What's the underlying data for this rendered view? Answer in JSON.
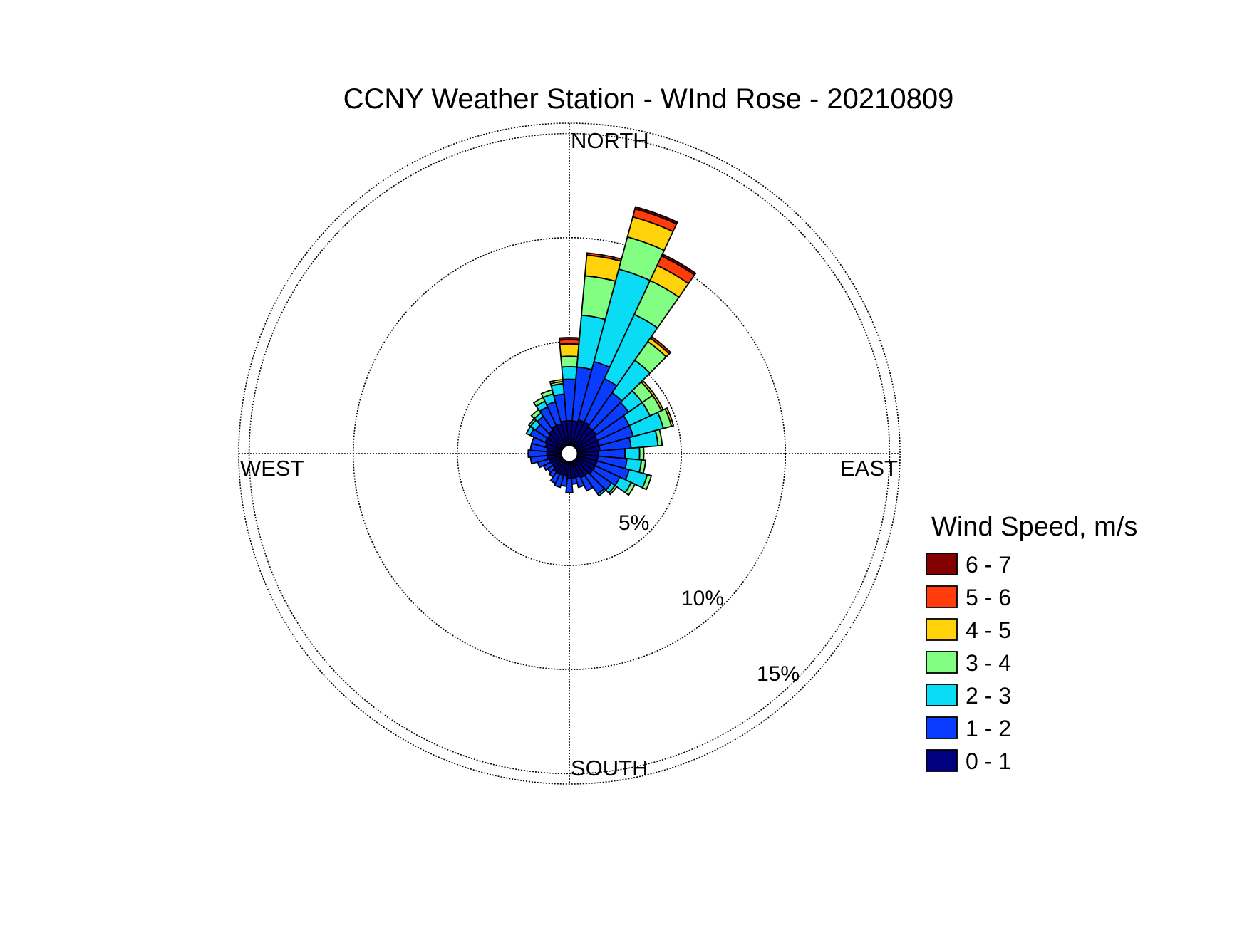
{
  "chart_data": {
    "type": "wind-rose",
    "title": "CCNY Weather Station - WInd Rose - 20210809",
    "directions_deg": [
      0,
      10,
      20,
      30,
      40,
      50,
      60,
      70,
      80,
      90,
      100,
      110,
      120,
      130,
      140,
      150,
      160,
      170,
      180,
      190,
      200,
      210,
      220,
      230,
      240,
      250,
      260,
      270,
      280,
      290,
      300,
      310,
      320,
      330,
      340,
      350
    ],
    "direction_labels": {
      "north": "NORTH",
      "east": "EAST",
      "south": "SOUTH",
      "west": "WEST"
    },
    "radial_unit": "%",
    "radial_ticks": [
      {
        "value": 5,
        "label": "5%"
      },
      {
        "value": 10,
        "label": "10%"
      },
      {
        "value": 15,
        "label": "15%"
      }
    ],
    "radial_max": 15.5,
    "legend_title": "Wind Speed, m/s",
    "legend_position": "right",
    "speed_bins": [
      {
        "label": "0 - 1",
        "color": "#000080"
      },
      {
        "label": "1 - 2",
        "color": "#0a3cff"
      },
      {
        "label": "2 - 3",
        "color": "#0adcf5"
      },
      {
        "label": "3 - 4",
        "color": "#82ff82"
      },
      {
        "label": "4 - 5",
        "color": "#ffd20a"
      },
      {
        "label": "5 - 6",
        "color": "#ff3c0a"
      },
      {
        "label": "6 - 7",
        "color": "#820000"
      }
    ],
    "series_cumulative": [
      [
        1.2,
        3.2,
        3.8,
        4.3,
        4.9,
        5.1,
        5.2
      ],
      [
        1.2,
        3.8,
        6.3,
        8.2,
        9.2,
        9.3,
        9.3
      ],
      [
        1.3,
        4.2,
        8.8,
        10.4,
        11.4,
        11.8,
        11.9
      ],
      [
        1.3,
        3.6,
        7.0,
        8.8,
        9.6,
        10.1,
        10.2
      ],
      [
        1.2,
        3.2,
        5.1,
        6.2,
        6.4,
        6.5,
        6.5
      ],
      [
        1.2,
        3.1,
        3.9,
        4.5,
        4.6,
        4.6,
        4.6
      ],
      [
        1.1,
        2.8,
        3.9,
        4.5,
        4.6,
        4.6,
        4.6
      ],
      [
        1.1,
        2.8,
        4.3,
        4.7,
        4.8,
        4.8,
        4.8
      ],
      [
        1.1,
        2.6,
        3.9,
        4.1,
        4.1,
        4.1,
        4.1
      ],
      [
        1.0,
        2.3,
        3.0,
        3.2,
        3.2,
        3.2,
        3.2
      ],
      [
        1.0,
        2.4,
        3.1,
        3.3,
        3.3,
        3.3,
        3.3
      ],
      [
        1.0,
        2.6,
        3.5,
        3.7,
        3.7,
        3.7,
        3.7
      ],
      [
        1.0,
        2.3,
        2.9,
        3.1,
        3.1,
        3.1,
        3.1
      ],
      [
        1.0,
        2.1,
        2.3,
        2.4,
        2.4,
        2.4,
        2.4
      ],
      [
        0.9,
        2.0,
        2.1,
        2.1,
        2.1,
        2.1,
        2.1
      ],
      [
        0.9,
        1.6,
        1.6,
        1.6,
        1.6,
        1.6,
        1.6
      ],
      [
        0.8,
        1.3,
        1.3,
        1.3,
        1.3,
        1.3,
        1.3
      ],
      [
        0.8,
        1.1,
        1.1,
        1.1,
        1.1,
        1.1,
        1.1
      ],
      [
        0.8,
        1.5,
        1.5,
        1.5,
        1.5,
        1.5,
        1.5
      ],
      [
        0.7,
        1.2,
        1.2,
        1.2,
        1.2,
        1.2,
        1.2
      ],
      [
        0.7,
        1.3,
        1.3,
        1.3,
        1.3,
        1.3,
        1.3
      ],
      [
        0.7,
        1.2,
        1.2,
        1.2,
        1.2,
        1.2,
        1.2
      ],
      [
        0.7,
        1.0,
        1.0,
        1.0,
        1.0,
        1.0,
        1.0
      ],
      [
        0.6,
        0.9,
        0.9,
        0.9,
        0.9,
        0.9,
        0.9
      ],
      [
        0.6,
        1.0,
        1.0,
        1.0,
        1.0,
        1.0,
        1.0
      ],
      [
        0.6,
        1.2,
        1.2,
        1.2,
        1.2,
        1.2,
        1.2
      ],
      [
        0.7,
        1.5,
        1.5,
        1.5,
        1.5,
        1.5,
        1.5
      ],
      [
        0.7,
        1.6,
        1.6,
        1.6,
        1.6,
        1.6,
        1.6
      ],
      [
        0.7,
        1.5,
        1.5,
        1.5,
        1.5,
        1.5,
        1.5
      ],
      [
        0.8,
        1.5,
        1.5,
        1.5,
        1.5,
        1.5,
        1.5
      ],
      [
        0.9,
        1.7,
        1.9,
        1.9,
        1.9,
        1.9,
        1.9
      ],
      [
        0.9,
        1.6,
        1.9,
        2.0,
        2.0,
        2.0,
        2.0
      ],
      [
        1.0,
        1.8,
        2.0,
        2.2,
        2.2,
        2.2,
        2.2
      ],
      [
        1.1,
        2.1,
        2.4,
        2.6,
        2.6,
        2.6,
        2.6
      ],
      [
        1.1,
        2.2,
        2.6,
        2.8,
        2.8,
        2.8,
        2.8
      ],
      [
        1.2,
        2.5,
        3.0,
        3.1,
        3.2,
        3.2,
        3.2
      ]
    ]
  }
}
